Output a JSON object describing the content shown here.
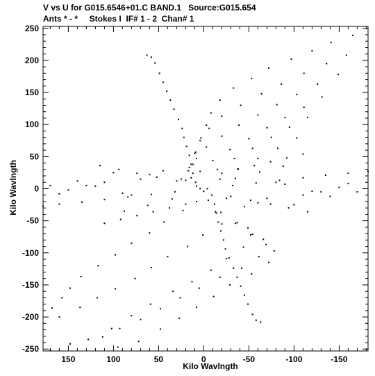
{
  "header": {
    "line1": "V vs U for G015.6546+01.C BAND.1   Source:G015.654",
    "line2": "Ants * - *     Stokes I  IF# 1 - 2  Chan# 1"
  },
  "chart_data": {
    "type": "scatter",
    "title": "V vs U for G015.6546+01.C BAND.1   Source:G015.654",
    "subtitle": "Ants * - *     Stokes I  IF# 1 - 2  Chan# 1",
    "xlabel": "Kilo Wavlngth",
    "ylabel": "Kilo Wavlngth",
    "xlim": [
      178,
      -182
    ],
    "ylim": [
      -253,
      253
    ],
    "x_reversed": true,
    "xticks": [
      150,
      100,
      50,
      0,
      -50,
      -100,
      -150
    ],
    "yticks": [
      -250,
      -200,
      -150,
      -100,
      -50,
      0,
      50,
      100,
      150,
      200,
      250
    ],
    "xtick_labels": [
      "150",
      "100",
      "50",
      "0",
      "-50",
      "-100",
      "-150"
    ],
    "ytick_labels": [
      "-250",
      "-200",
      "-150",
      "-100",
      "-50",
      "0",
      "50",
      "100",
      "150",
      "200",
      "250"
    ],
    "grid": false,
    "marker_color": "#000000",
    "series": [
      {
        "values": [
          [
            -165,
            239
          ],
          [
            -141,
            228
          ],
          [
            -120,
            215
          ],
          [
            -97,
            202
          ],
          [
            -72,
            188
          ],
          [
            -53,
            172
          ],
          [
            -33,
            157
          ],
          [
            -18,
            138
          ],
          [
            -8,
            118
          ],
          [
            -3,
            99
          ],
          [
            3,
            79
          ],
          [
            9,
            57
          ],
          [
            12,
            38
          ],
          [
            14,
            17
          ],
          [
            8,
            4
          ],
          [
            -158,
            208
          ],
          [
            -136,
            195
          ],
          [
            -111,
            180
          ],
          [
            -86,
            163
          ],
          [
            -64,
            148
          ],
          [
            -41,
            130
          ],
          [
            -20,
            113
          ],
          [
            -6,
            94
          ],
          [
            4,
            75
          ],
          [
            10,
            55
          ],
          [
            16,
            33
          ],
          [
            20,
            13
          ],
          [
            -149,
            178
          ],
          [
            -126,
            163
          ],
          [
            -103,
            147
          ],
          [
            -81,
            131
          ],
          [
            -60,
            115
          ],
          [
            -39,
            99
          ],
          [
            -20,
            82
          ],
          [
            -3,
            65
          ],
          [
            8,
            47
          ],
          [
            17,
            28
          ],
          [
            -131,
            143
          ],
          [
            -111,
            127
          ],
          [
            -90,
            111
          ],
          [
            -70,
            95
          ],
          [
            -50,
            78
          ],
          [
            -29,
            61
          ],
          [
            -10,
            44
          ],
          [
            4,
            27
          ],
          [
            -115,
            111
          ],
          [
            -95,
            96
          ],
          [
            -75,
            80
          ],
          [
            -54,
            63
          ],
          [
            -34,
            47
          ],
          [
            -15,
            30
          ],
          [
            -103,
            79
          ],
          [
            -82,
            63
          ],
          [
            -60,
            47
          ],
          [
            -38,
            31
          ],
          [
            -18,
            15
          ],
          [
            0,
            -4
          ],
          [
            8,
            -20
          ],
          [
            23,
            -34
          ],
          [
            44,
            -52
          ],
          [
            60,
            -69
          ],
          [
            80,
            -85
          ],
          [
            98,
            -103
          ],
          [
            117,
            -120
          ],
          [
            136,
            -137
          ],
          [
            148,
            -155
          ],
          [
            157,
            -170
          ],
          [
            168,
            -186
          ],
          [
            -5,
            -18
          ],
          [
            -13,
            -36
          ],
          [
            -20,
            -55
          ],
          [
            1,
            -72
          ],
          [
            18,
            -90
          ],
          [
            40,
            -106
          ],
          [
            58,
            -123
          ],
          [
            76,
            -140
          ],
          [
            98,
            -156
          ],
          [
            118,
            -170
          ],
          [
            137,
            -185
          ],
          [
            160,
            -200
          ],
          [
            -19,
            -37
          ],
          [
            -35,
            -54
          ],
          [
            -52,
            -72
          ],
          [
            -44,
            -91
          ],
          [
            -25,
            -109
          ],
          [
            -8,
            -127
          ],
          [
            13,
            -145
          ],
          [
            34,
            -160
          ],
          [
            59,
            -180
          ],
          [
            80,
            -198
          ],
          [
            102,
            -218
          ],
          [
            128,
            -235
          ],
          [
            148,
            -242
          ],
          [
            170,
            -252
          ],
          [
            -37,
            -53
          ],
          [
            -54,
            -71
          ],
          [
            -69,
            -87
          ],
          [
            -61,
            -106
          ],
          [
            -42,
            -124
          ],
          [
            -18,
            -138
          ],
          [
            5,
            -155
          ],
          [
            26,
            -170
          ],
          [
            48,
            -187
          ],
          [
            70,
            -204
          ],
          [
            93,
            -218
          ],
          [
            112,
            -231
          ],
          [
            -49,
            -61
          ],
          [
            -66,
            -79
          ],
          [
            -78,
            -97
          ],
          [
            -72,
            -115
          ],
          [
            -53,
            -133
          ],
          [
            -29,
            -150
          ],
          [
            -11,
            -168
          ],
          [
            8,
            -185
          ],
          [
            27,
            -202
          ],
          [
            48,
            -219
          ],
          [
            72,
            -238
          ],
          [
            95,
            -247
          ],
          [
            32,
            -5
          ],
          [
            58,
            -9
          ],
          [
            84,
            -13
          ],
          [
            110,
            -17
          ],
          [
            135,
            -21
          ],
          [
            160,
            -24
          ],
          [
            178,
            -27
          ],
          [
            -32,
            5
          ],
          [
            -58,
            9
          ],
          [
            -84,
            13
          ],
          [
            -110,
            17
          ],
          [
            -135,
            21
          ],
          [
            -160,
            24
          ],
          [
            -182,
            27
          ],
          [
            30,
            12
          ],
          [
            52,
            18
          ],
          [
            74,
            24
          ],
          [
            94,
            30
          ],
          [
            115,
            36
          ],
          [
            -30,
            -12
          ],
          [
            -52,
            -18
          ],
          [
            -74,
            -24
          ],
          [
            -94,
            -30
          ],
          [
            -115,
            -36
          ],
          [
            20,
            -24
          ],
          [
            38,
            -30
          ],
          [
            56,
            -36
          ],
          [
            74,
            -42
          ],
          [
            92,
            -48
          ],
          [
            110,
            -54
          ],
          [
            -20,
            24
          ],
          [
            -38,
            30
          ],
          [
            -56,
            36
          ],
          [
            -74,
            42
          ],
          [
            -92,
            48
          ],
          [
            -110,
            54
          ],
          [
            35,
            -16
          ],
          [
            62,
            -26
          ],
          [
            88,
            -35
          ],
          [
            -35,
            16
          ],
          [
            -62,
            26
          ],
          [
            -88,
            35
          ],
          [
            150,
            -2
          ],
          [
            -150,
            2
          ],
          [
            120,
            4
          ],
          [
            -120,
            -4
          ],
          [
            90,
            -7
          ],
          [
            -90,
            7
          ],
          [
            -60,
            -22
          ],
          [
            60,
            22
          ],
          [
            -45,
            -28
          ],
          [
            45,
            28
          ],
          [
            -25,
            -15
          ],
          [
            25,
            15
          ],
          [
            -70,
            -15
          ],
          [
            70,
            15
          ],
          [
            -100,
            -25
          ],
          [
            100,
            25
          ],
          [
            -130,
            -5
          ],
          [
            130,
            5
          ],
          [
            -80,
            10
          ],
          [
            80,
            -10
          ],
          [
            -110,
            -10
          ],
          [
            110,
            10
          ],
          [
            -140,
            -12
          ],
          [
            140,
            12
          ],
          [
            -160,
            8
          ],
          [
            160,
            -8
          ],
          [
            -170,
            -5
          ],
          [
            170,
            5
          ]
        ],
        "values_b": [
          [
            4,
            0
          ],
          [
            9,
            10
          ],
          [
            12,
            24
          ],
          [
            14,
            38
          ],
          [
            16,
            52
          ],
          [
            19,
            66
          ],
          [
            22,
            80
          ],
          [
            24,
            94
          ],
          [
            28,
            108
          ],
          [
            33,
            124
          ],
          [
            37,
            138
          ],
          [
            41,
            152
          ],
          [
            45,
            166
          ],
          [
            49,
            180
          ],
          [
            54,
            196
          ],
          [
            58,
            205
          ],
          [
            63,
            208
          ],
          [
            -4,
            0
          ],
          [
            -9,
            -10
          ],
          [
            -12,
            -24
          ],
          [
            -14,
            -38
          ],
          [
            -16,
            -52
          ],
          [
            -19,
            -66
          ],
          [
            -22,
            -80
          ],
          [
            -24,
            -94
          ],
          [
            -28,
            -108
          ],
          [
            -33,
            -124
          ],
          [
            -37,
            -138
          ],
          [
            -41,
            -152
          ],
          [
            -45,
            -166
          ],
          [
            -49,
            -180
          ],
          [
            -54,
            -196
          ],
          [
            -58,
            -205
          ],
          [
            -63,
            -208
          ]
        ]
      }
    ]
  }
}
